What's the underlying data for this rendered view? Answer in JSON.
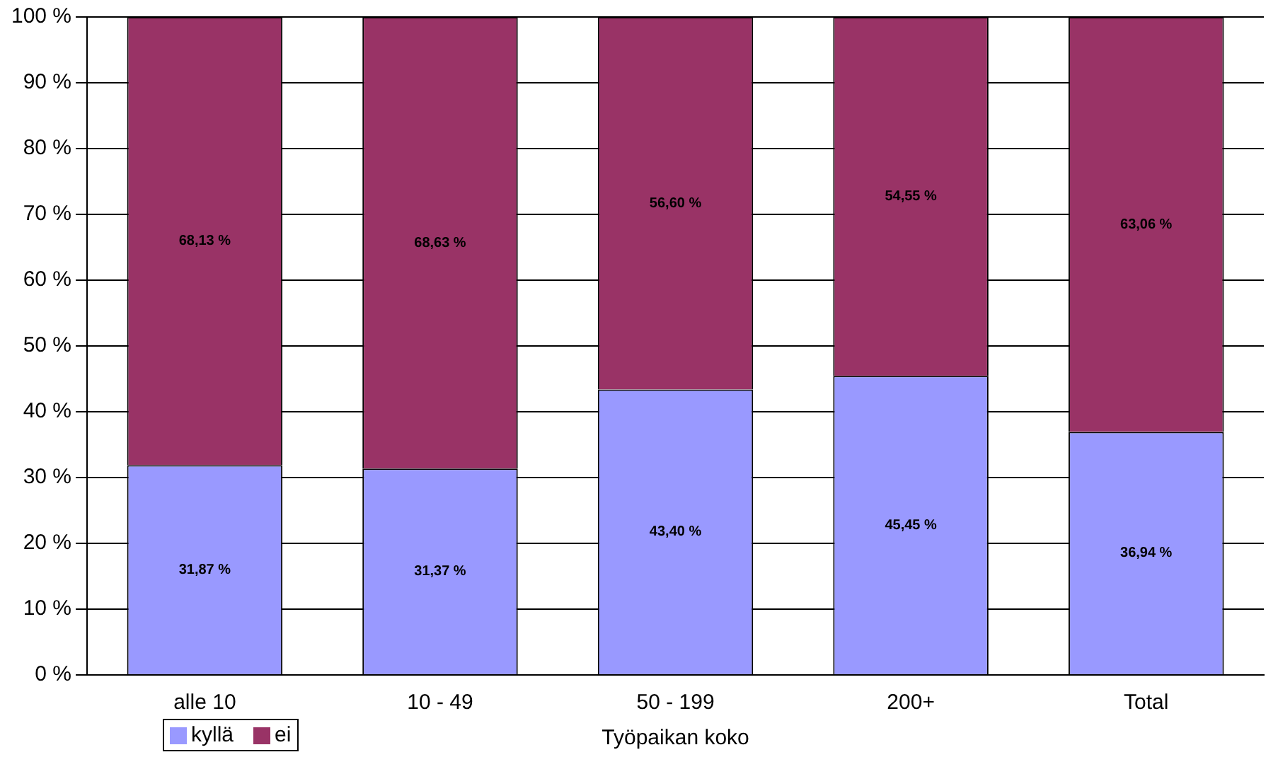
{
  "chart_data": {
    "type": "bar",
    "stacked": true,
    "xlabel": "Työpaikan koko",
    "categories": [
      "alle 10",
      "10 - 49",
      "50 - 199",
      "200+",
      "Total"
    ],
    "series": [
      {
        "name": "kyllä",
        "color": "#9999ff",
        "values": [
          31.87,
          31.37,
          43.4,
          45.45,
          36.94
        ],
        "value_labels": [
          "31,87 %",
          "31,37 %",
          "43,40 %",
          "45,45 %",
          "36,94 %"
        ]
      },
      {
        "name": "ei",
        "color": "#993366",
        "values": [
          68.13,
          68.63,
          56.6,
          54.55,
          63.06
        ],
        "value_labels": [
          "68,13 %",
          "68,63 %",
          "56,60 %",
          "54,55 %",
          "63,06 %"
        ]
      }
    ],
    "ylim": [
      0,
      100
    ],
    "yticks": [
      {
        "value": 0,
        "label": "0 %"
      },
      {
        "value": 10,
        "label": "10 %"
      },
      {
        "value": 20,
        "label": "20 %"
      },
      {
        "value": 30,
        "label": "30 %"
      },
      {
        "value": 40,
        "label": "40 %"
      },
      {
        "value": 50,
        "label": "50 %"
      },
      {
        "value": 60,
        "label": "60 %"
      },
      {
        "value": 70,
        "label": "70 %"
      },
      {
        "value": 80,
        "label": "80 %"
      },
      {
        "value": 90,
        "label": "90 %"
      },
      {
        "value": 100,
        "label": "100 %"
      }
    ],
    "grid": "y",
    "legend": "bottom left"
  }
}
